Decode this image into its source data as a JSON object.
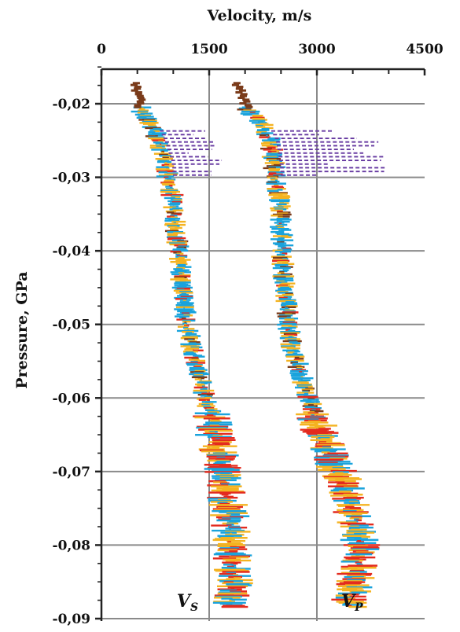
{
  "chart_data": {
    "type": "line",
    "title": "",
    "xlabel": "Velocity, m/s",
    "ylabel": "Pressure, GPa",
    "x_axis_position": "top",
    "xlim": [
      0,
      4500
    ],
    "ylim": [
      -0.09,
      -0.015
    ],
    "x_ticks": [
      0,
      1500,
      3000,
      4500
    ],
    "x_tick_labels": [
      "0",
      "1500",
      "3000",
      "4500"
    ],
    "y_ticks": [
      -0.02,
      -0.03,
      -0.04,
      -0.05,
      -0.06,
      -0.07,
      -0.08,
      -0.09
    ],
    "y_tick_labels": [
      "-0,02",
      "-0,03",
      "-0,04",
      "-0,05",
      "-0,06",
      "-0,07",
      "-0,08",
      "-0,09"
    ],
    "grid": true,
    "series_colors": [
      "#1aa3dc",
      "#f4b321",
      "#e32b1f",
      "#6a3fa3",
      "#7a3b1a"
    ],
    "series": [
      {
        "name": "Vs",
        "label_main": "V",
        "label_sub": "S",
        "color": "#1aa3dc",
        "x": [
          480,
          560,
          700,
          800,
          900,
          920,
          1000,
          1020,
          1080,
          1100,
          1150,
          1180,
          1260,
          1350,
          1420,
          1520,
          1580,
          1650,
          1700,
          1750,
          1800,
          1800,
          1850,
          1800
        ],
        "y": [
          -0.0175,
          -0.021,
          -0.023,
          -0.025,
          -0.028,
          -0.03,
          -0.033,
          -0.036,
          -0.04,
          -0.043,
          -0.047,
          -0.05,
          -0.053,
          -0.056,
          -0.059,
          -0.062,
          -0.065,
          -0.068,
          -0.071,
          -0.074,
          -0.077,
          -0.08,
          -0.084,
          -0.088
        ]
      },
      {
        "name": "Vp",
        "label_main": "V",
        "label_sub": "P",
        "color": "#1aa3dc",
        "x": [
          1900,
          2050,
          2250,
          2350,
          2400,
          2420,
          2480,
          2500,
          2520,
          2530,
          2580,
          2600,
          2650,
          2750,
          2850,
          2950,
          3050,
          3200,
          3350,
          3450,
          3550,
          3600,
          3550,
          3450
        ],
        "y": [
          -0.0175,
          -0.021,
          -0.023,
          -0.025,
          -0.028,
          -0.03,
          -0.033,
          -0.036,
          -0.04,
          -0.043,
          -0.047,
          -0.05,
          -0.053,
          -0.056,
          -0.059,
          -0.062,
          -0.065,
          -0.068,
          -0.071,
          -0.074,
          -0.077,
          -0.08,
          -0.084,
          -0.088
        ]
      }
    ]
  }
}
